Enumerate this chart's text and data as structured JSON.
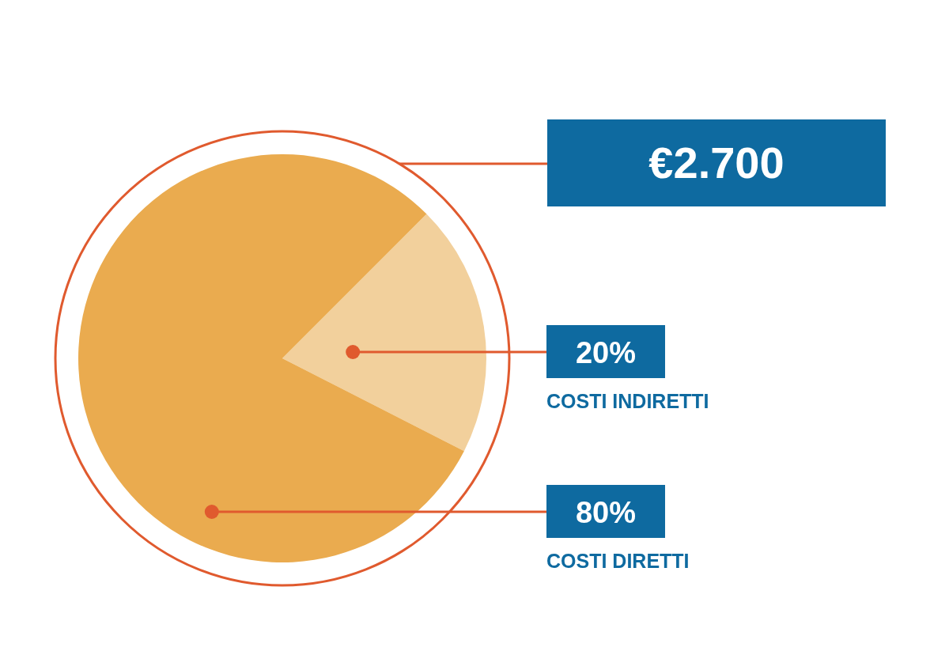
{
  "chart_data": {
    "type": "pie",
    "categories": [
      "COSTI INDIRETTI",
      "COSTI DIRETTI"
    ],
    "values": [
      20,
      80
    ],
    "colors": [
      "#f2d09c",
      "#eaab4f"
    ],
    "value_labels": [
      "20%",
      "80%"
    ],
    "annotations": [
      "€2.700"
    ]
  }
}
